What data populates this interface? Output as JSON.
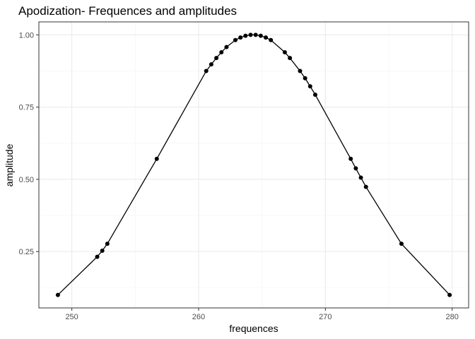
{
  "chart_data": {
    "type": "line",
    "title": "Apodization- Frequences and amplitudes",
    "xlabel": "frequences",
    "ylabel": "amplitude",
    "xlim": [
      247.4,
      281.3
    ],
    "ylim": [
      0.055,
      1.045
    ],
    "x_ticks": [
      250,
      260,
      270,
      280
    ],
    "x_tick_labels": [
      "250",
      "260",
      "270",
      "280"
    ],
    "y_ticks": [
      0.25,
      0.5,
      0.75,
      1.0
    ],
    "y_tick_labels": [
      "0.25",
      "0.50",
      "0.75",
      "1.00"
    ],
    "grid": true,
    "legend": "none",
    "series": [
      {
        "x": [
          248.9,
          252.0,
          252.4,
          252.8,
          256.7,
          260.6,
          261.0,
          261.4,
          261.8,
          262.2,
          262.9,
          263.3,
          263.7,
          264.1,
          264.5,
          264.9,
          265.3,
          265.7,
          266.8,
          267.2,
          268.0,
          268.4,
          268.8,
          269.2,
          272.0,
          272.4,
          272.8,
          273.2,
          276.0,
          279.8
        ],
        "y": [
          0.1,
          0.232,
          0.253,
          0.277,
          0.571,
          0.875,
          0.898,
          0.92,
          0.94,
          0.958,
          0.982,
          0.991,
          0.997,
          1.0,
          1.0,
          0.997,
          0.991,
          0.982,
          0.94,
          0.92,
          0.875,
          0.85,
          0.822,
          0.793,
          0.571,
          0.538,
          0.506,
          0.474,
          0.277,
          0.1
        ]
      }
    ]
  },
  "colors": {
    "line": "#000000",
    "points": "#000000",
    "grid": "#ebebeb",
    "panel_border": "#333333",
    "background": "#ffffff"
  }
}
